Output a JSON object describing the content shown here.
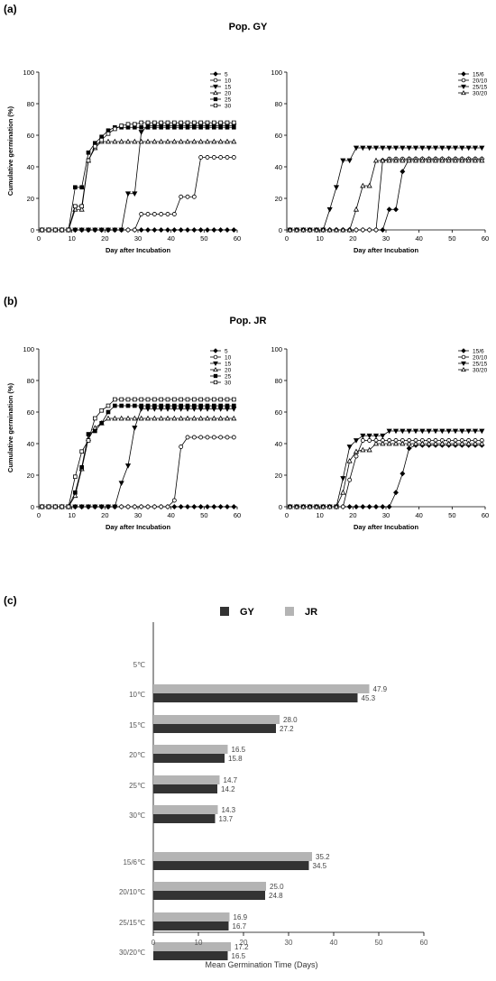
{
  "figure": {
    "panel_a_label": "(a)",
    "panel_b_label": "(b)",
    "panel_c_label": "(c)",
    "panel_a_title": "Pop. GY",
    "panel_b_title": "Pop. JR"
  },
  "colors": {
    "gy": "#333333",
    "jr": "#b4b4b4",
    "axis": "#000000"
  },
  "chart_data": [
    {
      "id": "gy-constant",
      "type": "line",
      "xlabel": "Day after Incubation",
      "ylabel": "Cumulative germination (%)",
      "xlim": [
        0,
        60
      ],
      "ylim": [
        0,
        100
      ],
      "xticks": [
        0,
        10,
        20,
        30,
        40,
        50,
        60
      ],
      "yticks": [
        0,
        20,
        40,
        60,
        80,
        100
      ],
      "legend_position": "top-right",
      "x": [
        1,
        3,
        5,
        7,
        9,
        11,
        13,
        15,
        17,
        19,
        21,
        23,
        25,
        27,
        29,
        31,
        33,
        35,
        37,
        39,
        41,
        43,
        45,
        47,
        49,
        51,
        53,
        55,
        57,
        59
      ],
      "series": [
        {
          "name": "5",
          "marker": "diamond-filled",
          "values": [
            0,
            0,
            0,
            0,
            0,
            0,
            0,
            0,
            0,
            0,
            0,
            0,
            0,
            0,
            0,
            0,
            0,
            0,
            0,
            0,
            0,
            0,
            0,
            0,
            0,
            0,
            0,
            0,
            0,
            0
          ]
        },
        {
          "name": "10",
          "marker": "circle-open",
          "values": [
            0,
            0,
            0,
            0,
            0,
            0,
            0,
            0,
            0,
            0,
            0,
            0,
            0,
            0,
            0,
            10,
            10,
            10,
            10,
            10,
            10,
            21,
            21,
            21,
            46,
            46,
            46,
            46,
            46,
            46
          ]
        },
        {
          "name": "15",
          "marker": "triangle-down-filled",
          "values": [
            0,
            0,
            0,
            0,
            0,
            0,
            0,
            0,
            0,
            0,
            0,
            0,
            0,
            23,
            23,
            62,
            66,
            66,
            66,
            66,
            66,
            66,
            66,
            66,
            66,
            66,
            66,
            66,
            66,
            66
          ]
        },
        {
          "name": "20",
          "marker": "triangle-up-open",
          "values": [
            0,
            0,
            0,
            0,
            0,
            13,
            13,
            44,
            52,
            56,
            56,
            56,
            56,
            56,
            56,
            56,
            56,
            56,
            56,
            56,
            56,
            56,
            56,
            56,
            56,
            56,
            56,
            56,
            56,
            56
          ]
        },
        {
          "name": "25",
          "marker": "square-filled",
          "values": [
            0,
            0,
            0,
            0,
            0,
            27,
            27,
            49,
            55,
            59,
            63,
            65,
            65,
            65,
            65,
            65,
            65,
            65,
            65,
            65,
            65,
            65,
            65,
            65,
            65,
            65,
            65,
            65,
            65,
            65
          ]
        },
        {
          "name": "30",
          "marker": "square-open",
          "values": [
            0,
            0,
            0,
            0,
            0,
            15,
            15,
            44,
            53,
            57,
            61,
            64,
            66,
            67,
            67,
            68,
            68,
            68,
            68,
            68,
            68,
            68,
            68,
            68,
            68,
            68,
            68,
            68,
            68,
            68
          ]
        }
      ]
    },
    {
      "id": "gy-alternating",
      "type": "line",
      "xlabel": "Day after Incubation",
      "ylabel": "",
      "xlim": [
        0,
        60
      ],
      "ylim": [
        0,
        100
      ],
      "xticks": [
        0,
        10,
        20,
        30,
        40,
        50,
        60
      ],
      "yticks": [
        0,
        20,
        40,
        60,
        80,
        100
      ],
      "legend_position": "top-right",
      "x": [
        1,
        3,
        5,
        7,
        9,
        11,
        13,
        15,
        17,
        19,
        21,
        23,
        25,
        27,
        29,
        31,
        33,
        35,
        37,
        39,
        41,
        43,
        45,
        47,
        49,
        51,
        53,
        55,
        57,
        59
      ],
      "series": [
        {
          "name": "15/6",
          "marker": "diamond-filled",
          "values": [
            0,
            0,
            0,
            0,
            0,
            0,
            0,
            0,
            0,
            0,
            0,
            0,
            0,
            0,
            0,
            13,
            13,
            37,
            45,
            45,
            45,
            45,
            45,
            45,
            45,
            45,
            45,
            45,
            45,
            45
          ]
        },
        {
          "name": "20/10",
          "marker": "circle-open",
          "values": [
            0,
            0,
            0,
            0,
            0,
            0,
            0,
            0,
            0,
            0,
            0,
            0,
            0,
            0,
            44,
            45,
            45,
            45,
            45,
            45,
            45,
            45,
            45,
            45,
            45,
            45,
            45,
            45,
            45,
            45
          ]
        },
        {
          "name": "25/15",
          "marker": "triangle-down-filled",
          "values": [
            0,
            0,
            0,
            0,
            0,
            0,
            13,
            27,
            44,
            44,
            52,
            52,
            52,
            52,
            52,
            52,
            52,
            52,
            52,
            52,
            52,
            52,
            52,
            52,
            52,
            52,
            52,
            52,
            52,
            52
          ]
        },
        {
          "name": "30/20",
          "marker": "triangle-up-open",
          "values": [
            0,
            0,
            0,
            0,
            0,
            0,
            0,
            0,
            0,
            0,
            13,
            28,
            28,
            44,
            44,
            44,
            44,
            44,
            44,
            44,
            44,
            44,
            44,
            44,
            44,
            44,
            44,
            44,
            44,
            44
          ]
        }
      ]
    },
    {
      "id": "jr-constant",
      "type": "line",
      "xlabel": "Day after Incubation",
      "ylabel": "Cumulative germination (%)",
      "xlim": [
        0,
        60
      ],
      "ylim": [
        0,
        100
      ],
      "xticks": [
        0,
        10,
        20,
        30,
        40,
        50,
        60
      ],
      "yticks": [
        0,
        20,
        40,
        60,
        80,
        100
      ],
      "legend_position": "top-right",
      "x": [
        1,
        3,
        5,
        7,
        9,
        11,
        13,
        15,
        17,
        19,
        21,
        23,
        25,
        27,
        29,
        31,
        33,
        35,
        37,
        39,
        41,
        43,
        45,
        47,
        49,
        51,
        53,
        55,
        57,
        59
      ],
      "series": [
        {
          "name": "5",
          "marker": "diamond-filled",
          "values": [
            0,
            0,
            0,
            0,
            0,
            0,
            0,
            0,
            0,
            0,
            0,
            0,
            0,
            0,
            0,
            0,
            0,
            0,
            0,
            0,
            0,
            0,
            0,
            0,
            0,
            0,
            0,
            0,
            0,
            0
          ]
        },
        {
          "name": "10",
          "marker": "circle-open",
          "values": [
            0,
            0,
            0,
            0,
            0,
            0,
            0,
            0,
            0,
            0,
            0,
            0,
            0,
            0,
            0,
            0,
            0,
            0,
            0,
            0,
            4,
            38,
            44,
            44,
            44,
            44,
            44,
            44,
            44,
            44
          ]
        },
        {
          "name": "15",
          "marker": "triangle-down-filled",
          "values": [
            0,
            0,
            0,
            0,
            0,
            0,
            0,
            0,
            0,
            0,
            0,
            0,
            15,
            26,
            50,
            62,
            62,
            62,
            62,
            62,
            62,
            62,
            62,
            62,
            62,
            62,
            62,
            62,
            62,
            62
          ]
        },
        {
          "name": "20",
          "marker": "triangle-up-open",
          "values": [
            0,
            0,
            0,
            0,
            0,
            7,
            24,
            43,
            50,
            53,
            56,
            56,
            56,
            56,
            56,
            56,
            56,
            56,
            56,
            56,
            56,
            56,
            56,
            56,
            56,
            56,
            56,
            56,
            56,
            56
          ]
        },
        {
          "name": "25",
          "marker": "square-filled",
          "values": [
            0,
            0,
            0,
            0,
            0,
            9,
            25,
            46,
            48,
            53,
            60,
            64,
            64,
            64,
            64,
            64,
            64,
            64,
            64,
            64,
            64,
            64,
            64,
            64,
            64,
            64,
            64,
            64,
            64,
            64
          ]
        },
        {
          "name": "30",
          "marker": "square-open",
          "values": [
            0,
            0,
            0,
            0,
            0,
            19,
            35,
            42,
            56,
            61,
            64,
            68,
            68,
            68,
            68,
            68,
            68,
            68,
            68,
            68,
            68,
            68,
            68,
            68,
            68,
            68,
            68,
            68,
            68,
            68
          ]
        }
      ]
    },
    {
      "id": "jr-alternating",
      "type": "line",
      "xlabel": "Day after Incubation",
      "ylabel": "",
      "xlim": [
        0,
        60
      ],
      "ylim": [
        0,
        100
      ],
      "xticks": [
        0,
        10,
        20,
        30,
        40,
        50,
        60
      ],
      "yticks": [
        0,
        20,
        40,
        60,
        80,
        100
      ],
      "legend_position": "top-right",
      "x": [
        1,
        3,
        5,
        7,
        9,
        11,
        13,
        15,
        17,
        19,
        21,
        23,
        25,
        27,
        29,
        31,
        33,
        35,
        37,
        39,
        41,
        43,
        45,
        47,
        49,
        51,
        53,
        55,
        57,
        59
      ],
      "series": [
        {
          "name": "15/6",
          "marker": "diamond-filled",
          "values": [
            0,
            0,
            0,
            0,
            0,
            0,
            0,
            0,
            0,
            0,
            0,
            0,
            0,
            0,
            0,
            0,
            9,
            21,
            37,
            39,
            39,
            39,
            39,
            39,
            39,
            39,
            39,
            39,
            39,
            39
          ]
        },
        {
          "name": "20/10",
          "marker": "circle-open",
          "values": [
            0,
            0,
            0,
            0,
            0,
            0,
            0,
            0,
            0,
            17,
            32,
            42,
            42,
            42,
            42,
            42,
            42,
            42,
            42,
            42,
            42,
            42,
            42,
            42,
            42,
            42,
            42,
            42,
            42,
            42
          ]
        },
        {
          "name": "25/15",
          "marker": "triangle-down-filled",
          "values": [
            0,
            0,
            0,
            0,
            0,
            0,
            0,
            0,
            18,
            38,
            42,
            45,
            45,
            45,
            45,
            48,
            48,
            48,
            48,
            48,
            48,
            48,
            48,
            48,
            48,
            48,
            48,
            48,
            48,
            48
          ]
        },
        {
          "name": "30/20",
          "marker": "triangle-up-open",
          "values": [
            0,
            0,
            0,
            0,
            0,
            0,
            0,
            0,
            9,
            29,
            35,
            36,
            36,
            40,
            40,
            40,
            40,
            40,
            40,
            40,
            40,
            40,
            40,
            40,
            40,
            40,
            40,
            40,
            40,
            40
          ]
        }
      ]
    },
    {
      "id": "mgt-bars",
      "type": "bar",
      "orientation": "horizontal",
      "xlabel": "Mean Germination Time (Days)",
      "xlim": [
        0,
        60
      ],
      "xticks": [
        0,
        10,
        20,
        30,
        40,
        50,
        60
      ],
      "legend_position": "top",
      "categories": [
        "5℃",
        "10℃",
        "15℃",
        "20℃",
        "25℃",
        "30℃",
        "15/6℃",
        "20/10℃",
        "25/15℃",
        "30/20℃"
      ],
      "series": [
        {
          "name": "GY",
          "values": [
            null,
            45.3,
            27.2,
            15.8,
            14.2,
            13.7,
            34.5,
            24.8,
            16.7,
            16.5
          ],
          "labels": [
            "",
            "45.3",
            "27.2",
            "15.8",
            "14.2",
            "13.7",
            "34.5",
            "24.8",
            "16.7",
            "16.5"
          ]
        },
        {
          "name": "JR",
          "values": [
            null,
            47.9,
            28.0,
            16.5,
            14.7,
            14.3,
            35.2,
            25.0,
            16.9,
            17.2
          ],
          "labels": [
            "",
            "47.9",
            "28.0",
            "16.5",
            "14.7",
            "14.3",
            "35.2",
            "25.0",
            "16.9",
            "17.2"
          ]
        }
      ]
    }
  ]
}
